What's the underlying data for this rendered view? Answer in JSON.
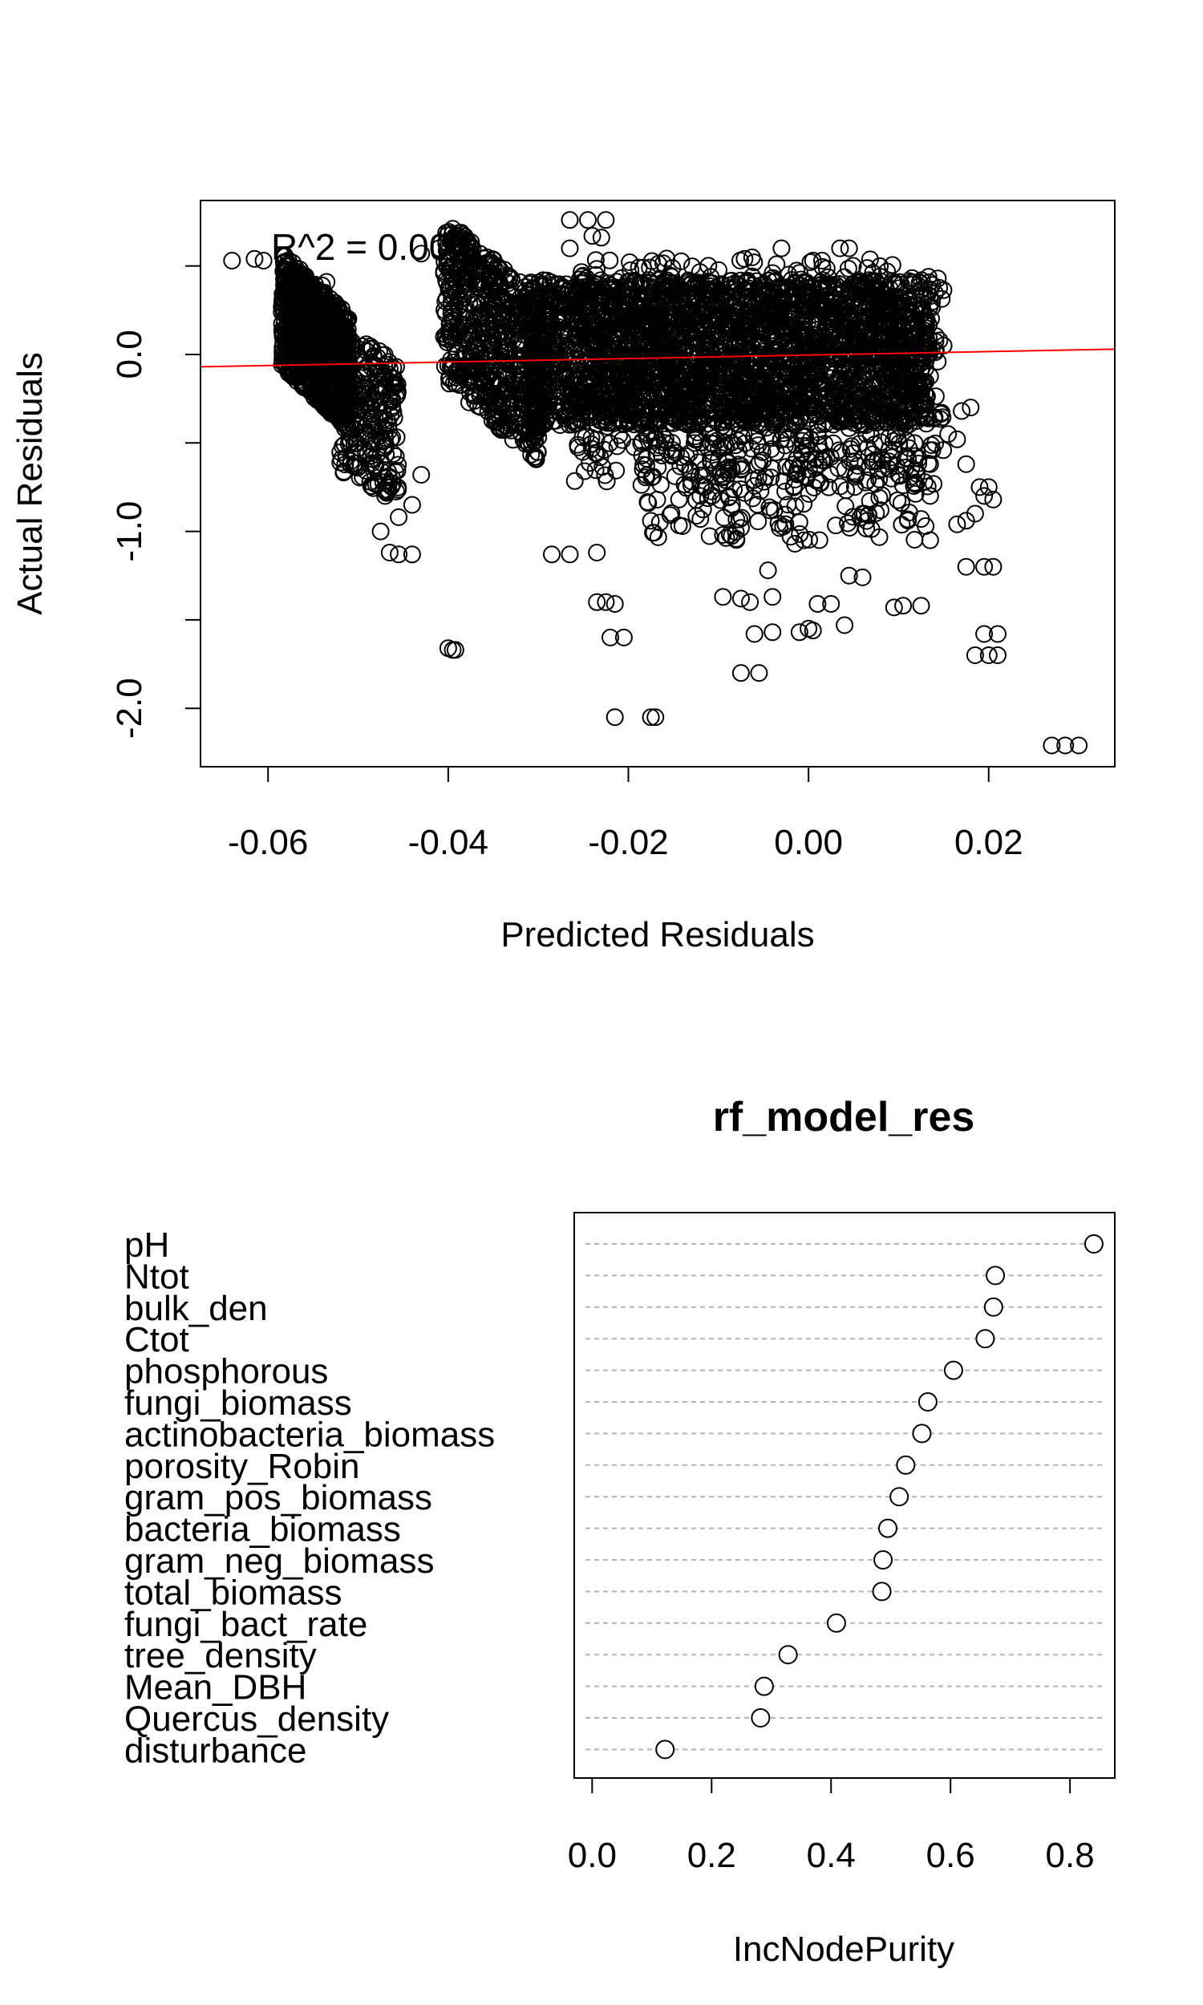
{
  "chart_data": [
    {
      "type": "scatter",
      "title": "",
      "xlabel": "Predicted Residuals",
      "ylabel": "Actual Residuals",
      "xlim": [
        -0.0675,
        0.034
      ],
      "ylim": [
        -2.33,
        0.87
      ],
      "x_ticks": [
        "-0.06",
        "-0.04",
        "-0.02",
        "0.00",
        "0.02"
      ],
      "x_tick_values": [
        -0.06,
        -0.04,
        -0.02,
        0.0,
        0.02
      ],
      "y_ticks": [
        "-2.0",
        "-1.0",
        "0.0"
      ],
      "y_tick_values": [
        -2.0,
        -1.0,
        0.0
      ],
      "annotation": "R^2 = 0.004",
      "fit_line": {
        "color": "#ff0000",
        "points": [
          [
            -0.0675,
            -0.07
          ],
          [
            0.034,
            0.03
          ]
        ]
      },
      "point_color": "#000000",
      "clusters": [
        {
          "x": [
            -0.0585,
            -0.051
          ],
          "y": [
            -0.25,
            0.4
          ],
          "drift": -8,
          "n": 900
        },
        {
          "x": [
            -0.052,
            -0.0455
          ],
          "y": [
            -0.75,
            0.05
          ],
          "drift": -4,
          "n": 260
        },
        {
          "x": [
            -0.0405,
            -0.03
          ],
          "y": [
            -0.38,
            0.55
          ],
          "drift": -10,
          "n": 650
        },
        {
          "x": [
            -0.031,
            0.0135
          ],
          "y": [
            -0.4,
            0.42
          ],
          "drift": 0,
          "n": 2600
        },
        {
          "x": [
            -0.026,
            0.015
          ],
          "y": [
            -0.75,
            0.55
          ],
          "drift": 0,
          "n": 700
        },
        {
          "x": [
            -0.018,
            0.012
          ],
          "y": [
            -1.05,
            -0.45
          ],
          "drift": 0,
          "n": 180
        }
      ],
      "points": [
        [
          -0.064,
          0.53
        ],
        [
          -0.0615,
          0.54
        ],
        [
          -0.0605,
          0.53
        ],
        [
          -0.057,
          0.4
        ],
        [
          -0.054,
          0.39
        ],
        [
          -0.0535,
          0.41
        ],
        [
          -0.0475,
          -1.0
        ],
        [
          -0.0465,
          -1.12
        ],
        [
          -0.0455,
          -1.13
        ],
        [
          -0.044,
          -1.13
        ],
        [
          -0.044,
          -0.85
        ],
        [
          -0.0455,
          -0.92
        ],
        [
          -0.043,
          -0.68
        ],
        [
          -0.047,
          -0.8
        ],
        [
          -0.04,
          -1.66
        ],
        [
          -0.0395,
          -1.67
        ],
        [
          -0.0392,
          -1.67
        ],
        [
          -0.043,
          0.57
        ],
        [
          -0.041,
          0.6
        ],
        [
          -0.039,
          0.62
        ],
        [
          -0.0375,
          0.61
        ],
        [
          -0.04,
          0.58
        ],
        [
          -0.0285,
          -1.13
        ],
        [
          -0.0265,
          -1.13
        ],
        [
          -0.0235,
          -1.12
        ],
        [
          -0.0235,
          -1.4
        ],
        [
          -0.0225,
          -1.4
        ],
        [
          -0.0215,
          -1.41
        ],
        [
          -0.022,
          -1.6
        ],
        [
          -0.0205,
          -1.6
        ],
        [
          -0.0215,
          -2.05
        ],
        [
          -0.0175,
          -2.05
        ],
        [
          -0.017,
          -2.05
        ],
        [
          -0.0265,
          0.76
        ],
        [
          -0.0245,
          0.76
        ],
        [
          -0.0225,
          0.76
        ],
        [
          -0.024,
          0.67
        ],
        [
          -0.023,
          0.66
        ],
        [
          -0.0265,
          0.6
        ],
        [
          -0.0165,
          -0.95
        ],
        [
          -0.014,
          -0.97
        ],
        [
          -0.012,
          -0.93
        ],
        [
          -0.0095,
          -1.02
        ],
        [
          -0.0075,
          -0.98
        ],
        [
          -0.0095,
          -1.37
        ],
        [
          -0.0075,
          -1.38
        ],
        [
          -0.0065,
          -1.4
        ],
        [
          -0.004,
          -1.37
        ],
        [
          -0.006,
          -1.58
        ],
        [
          -0.004,
          -1.57
        ],
        [
          -0.0075,
          -1.8
        ],
        [
          -0.0055,
          -1.8
        ],
        [
          -0.0045,
          -1.22
        ],
        [
          -0.002,
          -1.03
        ],
        [
          -0.0015,
          -1.07
        ],
        [
          -0.0005,
          -1.05
        ],
        [
          0.0,
          -1.55
        ],
        [
          -0.001,
          -1.57
        ],
        [
          0.0005,
          -1.56
        ],
        [
          0.001,
          -1.41
        ],
        [
          0.0025,
          -1.41
        ],
        [
          0.004,
          -1.53
        ],
        [
          0.0045,
          -1.25
        ],
        [
          0.006,
          -1.26
        ],
        [
          0.006,
          -0.9
        ],
        [
          0.008,
          -0.88
        ],
        [
          0.0095,
          -1.43
        ],
        [
          0.0105,
          -1.42
        ],
        [
          0.0125,
          -1.42
        ],
        [
          0.0125,
          -0.93
        ],
        [
          0.013,
          -0.97
        ],
        [
          0.0135,
          -1.05
        ],
        [
          0.01,
          -0.68
        ],
        [
          0.0135,
          -0.62
        ],
        [
          0.0135,
          -0.8
        ],
        [
          0.0165,
          -0.96
        ],
        [
          0.0175,
          -0.94
        ],
        [
          0.0185,
          -0.9
        ],
        [
          0.0195,
          -0.8
        ],
        [
          0.0175,
          -1.2
        ],
        [
          0.0195,
          -1.2
        ],
        [
          0.0205,
          -1.2
        ],
        [
          0.0185,
          -1.7
        ],
        [
          0.0195,
          -1.58
        ],
        [
          0.02,
          -1.7
        ],
        [
          0.021,
          -1.58
        ],
        [
          0.021,
          -1.7
        ],
        [
          0.0165,
          -0.48
        ],
        [
          0.0175,
          -0.62
        ],
        [
          0.019,
          -0.75
        ],
        [
          0.02,
          -0.75
        ],
        [
          0.0205,
          -0.82
        ],
        [
          0.017,
          -0.32
        ],
        [
          0.018,
          -0.3
        ],
        [
          0.0155,
          -0.45
        ],
        [
          0.027,
          -2.21
        ],
        [
          0.0285,
          -2.21
        ],
        [
          0.03,
          -2.21
        ],
        [
          -0.003,
          0.6
        ],
        [
          0.0035,
          0.6
        ],
        [
          0.0045,
          0.6
        ],
        [
          0.0015,
          0.53
        ],
        [
          0.0005,
          0.53
        ],
        [
          0.015,
          0.05
        ],
        [
          -0.012,
          -0.8
        ],
        [
          -0.0085,
          -0.85
        ],
        [
          -0.01,
          -0.6
        ]
      ]
    },
    {
      "type": "dot",
      "title": "rf_model_res",
      "xlabel": "IncNodePurity",
      "xlim": [
        -0.03,
        0.875
      ],
      "x_ticks": [
        "0.0",
        "0.2",
        "0.4",
        "0.6",
        "0.8"
      ],
      "x_tick_values": [
        0.0,
        0.2,
        0.4,
        0.6,
        0.8
      ],
      "categories": [
        "pH",
        "Ntot",
        "bulk_den",
        "Ctot",
        "phosphorous",
        "fungi_biomass",
        "actinobacteria_biomass",
        "porosity_Robin",
        "gram_pos_biomass",
        "bacteria_biomass",
        "gram_neg_biomass",
        "total_biomass",
        "fungi_bact_rate",
        "tree_density",
        "Mean_DBH",
        "Quercus_density",
        "disturbance"
      ],
      "values": [
        0.84,
        0.675,
        0.672,
        0.658,
        0.605,
        0.562,
        0.552,
        0.525,
        0.514,
        0.495,
        0.487,
        0.485,
        0.409,
        0.328,
        0.288,
        0.282,
        0.122
      ]
    }
  ]
}
